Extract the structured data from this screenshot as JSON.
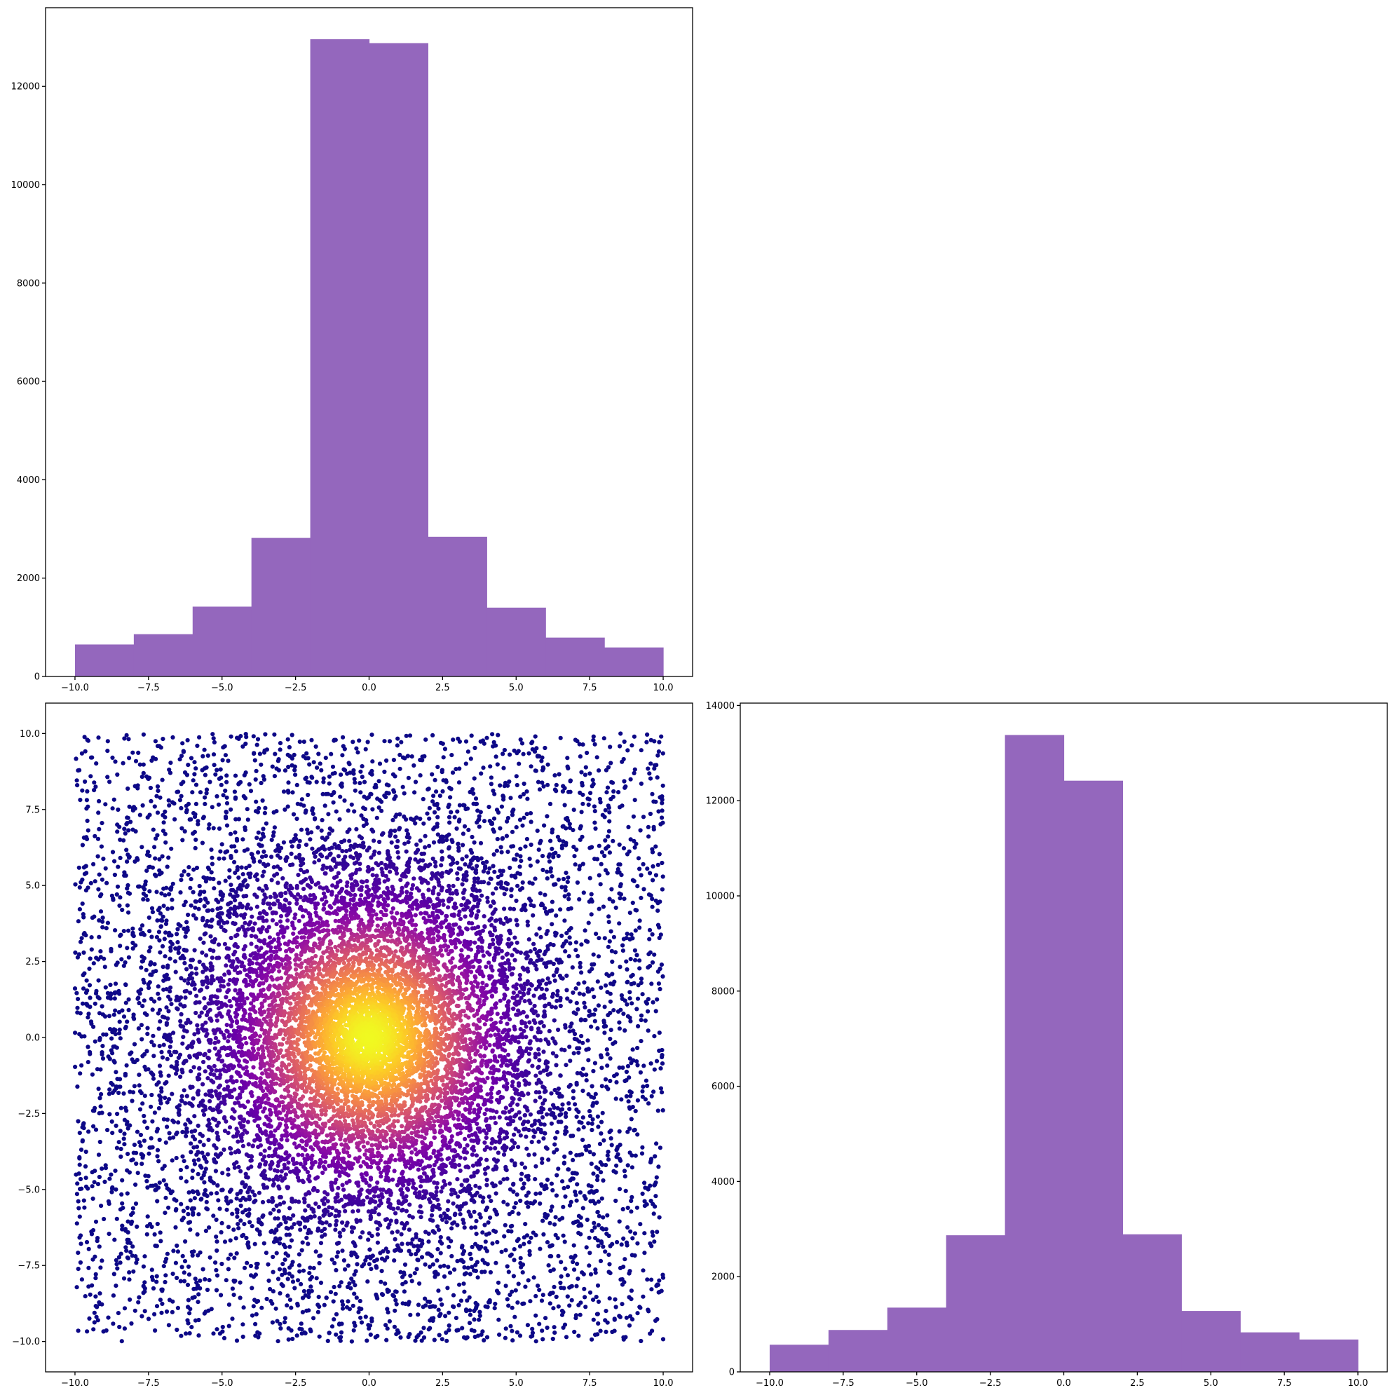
{
  "chart_data": [
    {
      "type": "bar",
      "panel": "top-left",
      "bin_edges": [
        -10,
        -8,
        -6,
        -4,
        -2,
        0,
        2,
        4,
        6,
        8,
        10
      ],
      "values": [
        650,
        860,
        1420,
        2820,
        12960,
        12880,
        2840,
        1400,
        790,
        590
      ],
      "xlim": [
        -11,
        11
      ],
      "ylim": [
        0,
        13600
      ],
      "xticks": [
        -10,
        -7.5,
        -5,
        -2.5,
        0,
        2.5,
        5,
        7.5,
        10
      ],
      "xtick_labels": [
        "−10.0",
        "−7.5",
        "−5.0",
        "−2.5",
        "0.0",
        "2.5",
        "5.0",
        "7.5",
        "10.0"
      ],
      "yticks": [
        0,
        2000,
        4000,
        6000,
        8000,
        10000,
        12000
      ],
      "ytick_labels": [
        "0",
        "2000",
        "4000",
        "6000",
        "8000",
        "10000",
        "12000"
      ],
      "grid": false,
      "color": "#9467bd"
    },
    {
      "type": "scatter",
      "panel": "bottom-left",
      "description_of_points": "about 25000 points, uniform in x and y on [-10, 10], plus a dense cluster near (0, 0); colored by density",
      "cluster_center": [
        0,
        0
      ],
      "xlim": [
        -11,
        11
      ],
      "ylim": [
        -11,
        11
      ],
      "xticks": [
        -10,
        -7.5,
        -5,
        -2.5,
        0,
        2.5,
        5,
        7.5,
        10
      ],
      "xtick_labels": [
        "−10.0",
        "−7.5",
        "−5.0",
        "−2.5",
        "0.0",
        "2.5",
        "5.0",
        "7.5",
        "10.0"
      ],
      "yticks": [
        -10,
        -7.5,
        -5,
        -2.5,
        0,
        2.5,
        5,
        7.5,
        10
      ],
      "ytick_labels": [
        "−10.0",
        "−7.5",
        "−5.0",
        "−2.5",
        "0.0",
        "2.5",
        "5.0",
        "7.5",
        "10.0"
      ],
      "grid": false,
      "colormap": "plasma",
      "colormap_stops": [
        "#0d0887",
        "#41049d",
        "#6a00a8",
        "#8f0da4",
        "#b12a90",
        "#cc4778",
        "#e16462",
        "#f2844b",
        "#fca636",
        "#fcce25",
        "#f0f921"
      ]
    },
    {
      "type": "bar",
      "panel": "bottom-right",
      "bin_edges": [
        -10,
        -8,
        -6,
        -4,
        -2,
        0,
        2,
        4,
        6,
        8,
        10
      ],
      "values": [
        570,
        880,
        1350,
        2870,
        13380,
        12420,
        2890,
        1280,
        830,
        680
      ],
      "xlim": [
        -11,
        11
      ],
      "ylim": [
        0,
        14050
      ],
      "xticks": [
        -10,
        -7.5,
        -5,
        -2.5,
        0,
        2.5,
        5,
        7.5,
        10
      ],
      "xtick_labels": [
        "−10.0",
        "−7.5",
        "−5.0",
        "−2.5",
        "0.0",
        "2.5",
        "5.0",
        "7.5",
        "10.0"
      ],
      "yticks": [
        0,
        2000,
        4000,
        6000,
        8000,
        10000,
        12000,
        14000
      ],
      "ytick_labels": [
        "0",
        "2000",
        "4000",
        "6000",
        "8000",
        "10000",
        "12000",
        "14000"
      ],
      "grid": false,
      "color": "#9467bd"
    }
  ]
}
